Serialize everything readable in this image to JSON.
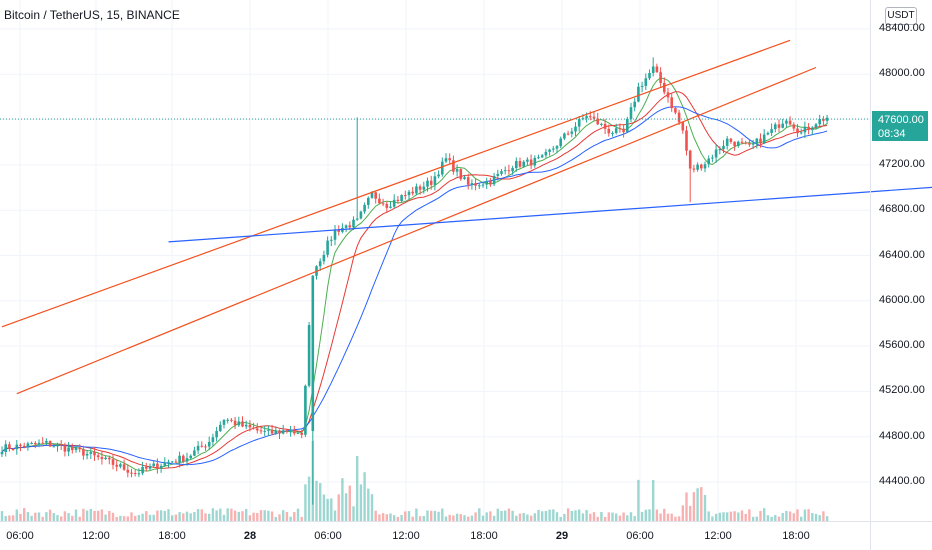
{
  "title": "Bitcoin / TetherUS, 15, BINANCE",
  "currency": "USDT",
  "current_price": "47600.00",
  "countdown": "08:34",
  "colors": {
    "up": "#26a69a",
    "down": "#ef5350",
    "ma_green": "#4caf50",
    "ma_red": "#e53935",
    "ma_blue": "#2962ff",
    "trend_orange": "#f4511e",
    "trend_blue": "#2962ff"
  },
  "chart_data": {
    "type": "candlestick",
    "y_ticks": [
      "48400.00",
      "48000.00",
      "47600.00",
      "47200.00",
      "46800.00",
      "46400.00",
      "46000.00",
      "45600.00",
      "45200.00",
      "44800.00",
      "44400.00"
    ],
    "x_ticks": [
      {
        "label": "06:00",
        "bold": false
      },
      {
        "label": "12:00",
        "bold": false
      },
      {
        "label": "18:00",
        "bold": false
      },
      {
        "label": "28",
        "bold": true
      },
      {
        "label": "06:00",
        "bold": false
      },
      {
        "label": "12:00",
        "bold": false
      },
      {
        "label": "18:00",
        "bold": false
      },
      {
        "label": "29",
        "bold": true
      },
      {
        "label": "06:00",
        "bold": false
      },
      {
        "label": "12:00",
        "bold": false
      },
      {
        "label": "18:00",
        "bold": false
      }
    ],
    "ylim": [
      44200,
      48450
    ],
    "grid": true,
    "price_line": 47600,
    "close_path": [
      [
        0,
        44700
      ],
      [
        12,
        44740
      ],
      [
        22,
        44660
      ],
      [
        30,
        44560
      ],
      [
        36,
        44480
      ],
      [
        44,
        44570
      ],
      [
        50,
        44620
      ],
      [
        56,
        44760
      ],
      [
        60,
        44960
      ],
      [
        66,
        44880
      ],
      [
        72,
        44830
      ],
      [
        78,
        44860
      ],
      [
        81,
        44790
      ],
      [
        84,
        46250
      ],
      [
        90,
        46620
      ],
      [
        96,
        46700
      ],
      [
        100,
        46940
      ],
      [
        104,
        46850
      ],
      [
        110,
        46950
      ],
      [
        116,
        47050
      ],
      [
        120,
        47250
      ],
      [
        126,
        47020
      ],
      [
        132,
        47060
      ],
      [
        138,
        47200
      ],
      [
        142,
        47220
      ],
      [
        146,
        47250
      ],
      [
        152,
        47450
      ],
      [
        158,
        47640
      ],
      [
        164,
        47500
      ],
      [
        168,
        47480
      ],
      [
        172,
        47880
      ],
      [
        176,
        48050
      ],
      [
        180,
        47800
      ],
      [
        184,
        47500
      ],
      [
        186,
        47150
      ],
      [
        190,
        47220
      ],
      [
        196,
        47420
      ],
      [
        202,
        47350
      ],
      [
        208,
        47500
      ],
      [
        212,
        47620
      ],
      [
        216,
        47480
      ],
      [
        220,
        47580
      ],
      [
        223,
        47620
      ]
    ],
    "trend_lines": [
      {
        "name": "channel-upper",
        "color": "orange",
        "from": [
          0,
          45770
        ],
        "to": [
          213,
          48300
        ]
      },
      {
        "name": "channel-lower",
        "color": "orange",
        "from": [
          4,
          45180
        ],
        "to": [
          220,
          48060
        ]
      },
      {
        "name": "support",
        "color": "blue",
        "from": [
          45,
          46520
        ],
        "to": [
          285,
          47080
        ]
      }
    ]
  }
}
